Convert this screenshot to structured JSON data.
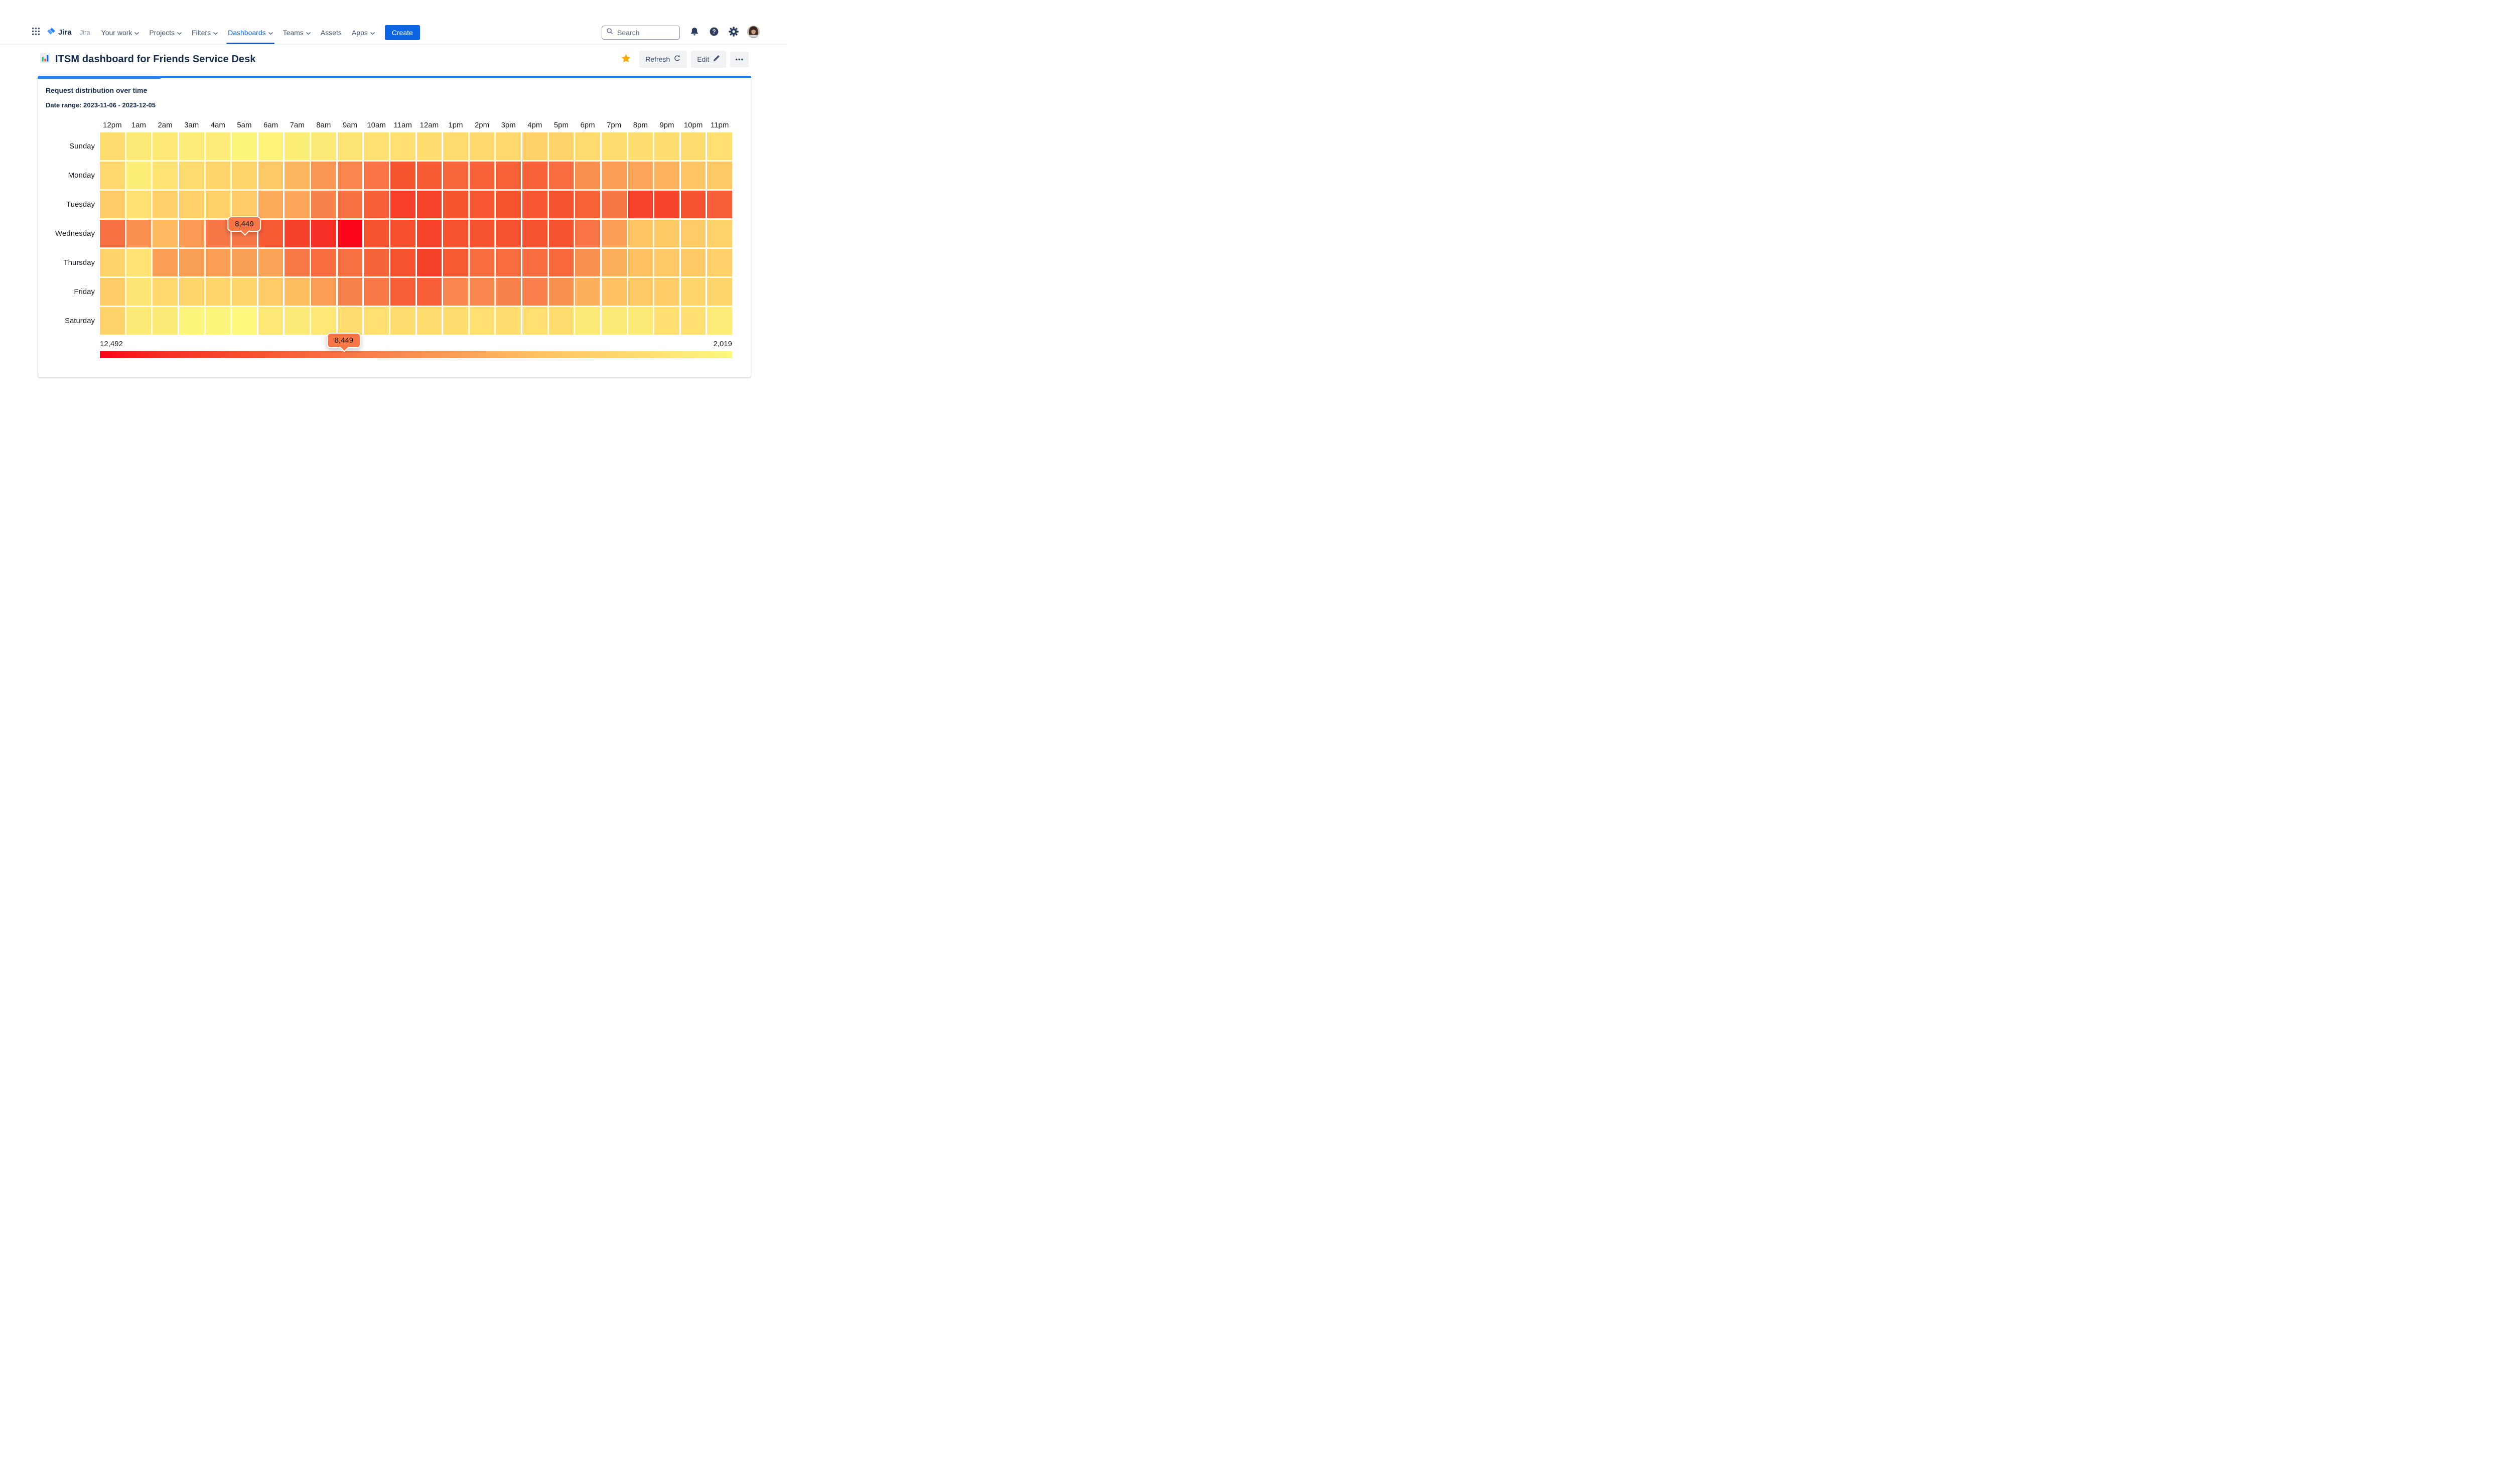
{
  "nav": {
    "logo_text": "Jira",
    "breadcrumb": "Jira",
    "items": [
      {
        "label": "Your work",
        "dropdown": true,
        "active": false
      },
      {
        "label": "Projects",
        "dropdown": true,
        "active": false
      },
      {
        "label": "Filters",
        "dropdown": true,
        "active": false
      },
      {
        "label": "Dashboards",
        "dropdown": true,
        "active": true
      },
      {
        "label": "Teams",
        "dropdown": true,
        "active": false
      },
      {
        "label": "Assets",
        "dropdown": false,
        "active": false
      },
      {
        "label": "Apps",
        "dropdown": true,
        "active": false
      }
    ],
    "create_label": "Create",
    "search_placeholder": "Search",
    "icon_names": [
      "app-switcher-icon",
      "jira-logo",
      "search-icon",
      "notifications-icon",
      "help-icon",
      "settings-icon",
      "avatar"
    ]
  },
  "page": {
    "title": "ITSM dashboard for Friends Service Desk",
    "refresh_label": "Refresh",
    "edit_label": "Edit",
    "more_label": "•••",
    "icon_names": [
      "bar-chart-icon",
      "star-icon",
      "refresh-icon",
      "pencil-icon",
      "ellipsis-icon"
    ]
  },
  "widget": {
    "title": "Request distribution over time",
    "date_range": "Date range: 2023-11-06 - 2023-12-05"
  },
  "colors": {
    "accent_blue": "#0C66E4",
    "card_top_bar": "#1D7AFC",
    "star_yellow": "#FFAB00",
    "heat_max_red": "#FB0418",
    "heat_min_yellow": "#FCF87E"
  },
  "chart_data": {
    "type": "heatmap",
    "title": "Request distribution over time",
    "x_labels": [
      "12pm",
      "1am",
      "2am",
      "3am",
      "4am",
      "5am",
      "6am",
      "7am",
      "8am",
      "9am",
      "10am",
      "11am",
      "12am",
      "1pm",
      "2pm",
      "3pm",
      "4pm",
      "5pm",
      "6pm",
      "7pm",
      "8pm",
      "9pm",
      "10pm",
      "11pm"
    ],
    "y_labels": [
      "Sunday",
      "Monday",
      "Tuesday",
      "Wednesday",
      "Thursday",
      "Friday",
      "Saturday"
    ],
    "series": [
      {
        "name": "Sunday",
        "values": [
          3600,
          2800,
          2900,
          2750,
          2700,
          2200,
          2300,
          2600,
          2800,
          3100,
          3300,
          3400,
          3500,
          3700,
          3800,
          3900,
          4400,
          4200,
          3700,
          3600,
          3500,
          3550,
          3600,
          3400
        ]
      },
      {
        "name": "Monday",
        "values": [
          3900,
          2600,
          3200,
          3700,
          4000,
          4000,
          4800,
          5700,
          7000,
          7700,
          8500,
          9800,
          9500,
          9100,
          9300,
          9300,
          9300,
          8800,
          7200,
          6700,
          6300,
          5800,
          4900,
          4700
        ]
      },
      {
        "name": "Tuesday",
        "values": [
          4600,
          3300,
          4300,
          4300,
          4400,
          4500,
          6200,
          6300,
          7900,
          8600,
          9400,
          10800,
          10600,
          9800,
          9700,
          9800,
          9700,
          9900,
          9300,
          8400,
          10600,
          10500,
          9900,
          9400
        ]
      },
      {
        "name": "Wednesday",
        "values": [
          8600,
          7300,
          5500,
          6800,
          8400,
          8449,
          9500,
          10700,
          11400,
          12492,
          9900,
          10100,
          10600,
          9900,
          9900,
          9900,
          9900,
          9900,
          8500,
          6700,
          4900,
          4700,
          4600,
          4200
        ]
      },
      {
        "name": "Thursday",
        "values": [
          4200,
          3200,
          6700,
          6600,
          6700,
          6600,
          6400,
          8300,
          8800,
          8700,
          9200,
          9900,
          10700,
          9600,
          8800,
          8800,
          8800,
          9000,
          7200,
          5900,
          5200,
          4800,
          4700,
          4300
        ]
      },
      {
        "name": "Friday",
        "values": [
          4500,
          3100,
          3900,
          4000,
          4100,
          4100,
          4600,
          5400,
          6700,
          7900,
          8300,
          9400,
          9400,
          7700,
          7700,
          7900,
          8000,
          7200,
          5900,
          5200,
          4800,
          4500,
          4100,
          4100
        ]
      },
      {
        "name": "Saturday",
        "values": [
          4200,
          2800,
          2800,
          2200,
          2200,
          2019,
          2900,
          2800,
          2900,
          3500,
          3400,
          3500,
          3600,
          3500,
          3400,
          3500,
          3400,
          3600,
          2800,
          2800,
          2800,
          3400,
          3400,
          2700
        ]
      }
    ],
    "scale": {
      "max": 12492,
      "min": 2019,
      "max_label": "12,492",
      "min_label": "2,019",
      "gradient_stops": [
        [
          "0%",
          "#FB0418"
        ],
        [
          "10%",
          "#F62F26"
        ],
        [
          "25%",
          "#F7532F"
        ],
        [
          "40%",
          "#F87848"
        ],
        [
          "55%",
          "#FA9C55"
        ],
        [
          "70%",
          "#FFC263"
        ],
        [
          "85%",
          "#FFDC6E"
        ],
        [
          "100%",
          "#FCF87E"
        ]
      ]
    },
    "tooltips": [
      {
        "label": "8,449",
        "value": 8449,
        "day": "Wednesday",
        "hour": "5am",
        "anchor": "cell"
      },
      {
        "label": "8,449",
        "value": 8449,
        "anchor": "scale"
      }
    ],
    "legend_position": "bottom",
    "grid": false
  }
}
